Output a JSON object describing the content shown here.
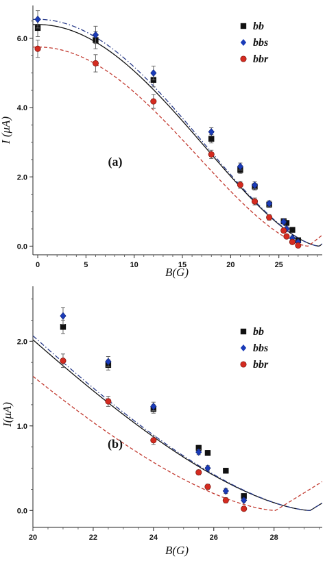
{
  "chart_data": [
    {
      "type": "scatter",
      "panel_label": "(a)",
      "xlabel": "B(G)",
      "ylabel": "I (μA)",
      "xlim": [
        -0.5,
        29.5
      ],
      "ylim": [
        -0.25,
        6.95
      ],
      "xticks": [
        0,
        5,
        10,
        15,
        20,
        25
      ],
      "yticks": [
        0.0,
        2.0,
        4.0,
        6.0
      ],
      "ytick_labels": [
        "0.0",
        "2.0",
        "4.0",
        "6.0"
      ],
      "legend_position": "top-right",
      "series": [
        {
          "name": "bb",
          "marker": "square",
          "color": "#111111",
          "points": [
            [
              0,
              6.3
            ],
            [
              6,
              5.95
            ],
            [
              12,
              4.8
            ],
            [
              18,
              3.1
            ],
            [
              21,
              2.2
            ],
            [
              22.5,
              1.72
            ],
            [
              24,
              1.2
            ],
            [
              25.5,
              0.72
            ],
            [
              25.8,
              0.67
            ],
            [
              26.4,
              0.47
            ],
            [
              27,
              0.17
            ]
          ],
          "errors": [
            0.25,
            0.25,
            0.2,
            0.12,
            0.1,
            0.1,
            0.08,
            0.06,
            0.06,
            0.06,
            0.05
          ]
        },
        {
          "name": "bbs",
          "marker": "diamond",
          "color": "#1a3bb8",
          "points": [
            [
              0,
              6.55
            ],
            [
              6,
              6.1
            ],
            [
              12,
              5.0
            ],
            [
              18,
              3.3
            ],
            [
              21,
              2.3
            ],
            [
              22.5,
              1.76
            ],
            [
              24,
              1.23
            ],
            [
              25.5,
              0.7
            ],
            [
              25.8,
              0.5
            ],
            [
              26.4,
              0.23
            ],
            [
              27,
              0.12
            ]
          ],
          "errors": [
            0.25,
            0.25,
            0.2,
            0.12,
            0.1,
            0.1,
            0.08,
            0.06,
            0.06,
            0.06,
            0.05
          ]
        },
        {
          "name": "bbr",
          "marker": "circle",
          "color": "#d42b20",
          "points": [
            [
              0,
              5.7
            ],
            [
              6,
              5.28
            ],
            [
              12,
              4.18
            ],
            [
              18,
              2.65
            ],
            [
              21,
              1.77
            ],
            [
              22.5,
              1.29
            ],
            [
              24,
              0.83
            ],
            [
              25.5,
              0.45
            ],
            [
              25.8,
              0.28
            ],
            [
              26.4,
              0.12
            ],
            [
              27,
              0.02
            ]
          ],
          "errors": [
            0.25,
            0.25,
            0.2,
            0.12,
            0.1,
            0.1,
            0.08,
            0.06,
            0.06,
            0.06,
            0.05
          ]
        }
      ],
      "fit_curves": [
        {
          "series": "bb",
          "style": "solid",
          "color": "#111111",
          "I0": 6.4,
          "B0": 29.2
        },
        {
          "series": "bbs",
          "style": "dashdot",
          "color": "#2a3c8a",
          "I0": 6.55,
          "B0": 29.2
        },
        {
          "series": "bbr",
          "style": "dashed",
          "color": "#c23a30",
          "I0": 5.75,
          "B0": 28.05
        }
      ]
    },
    {
      "type": "scatter",
      "panel_label": "(b)",
      "xlabel": "B(G)",
      "ylabel": "I(μA)",
      "xlim": [
        20,
        29.6
      ],
      "ylim": [
        -0.2,
        2.65
      ],
      "xticks": [
        20,
        22,
        24,
        26,
        28
      ],
      "yticks": [
        0.0,
        1.0,
        2.0
      ],
      "ytick_labels": [
        "0.0",
        "1.0",
        "2.0"
      ],
      "legend_position": "top-right",
      "series": [
        {
          "name": "bb",
          "marker": "square",
          "color": "#111111",
          "points": [
            [
              21,
              2.17
            ],
            [
              22.5,
              1.72
            ],
            [
              24,
              1.2
            ],
            [
              25.5,
              0.74
            ],
            [
              25.8,
              0.68
            ],
            [
              26.4,
              0.47
            ],
            [
              27,
              0.17
            ]
          ],
          "errors": [
            0.08,
            0.06,
            0.05,
            0.03,
            0.03,
            0.03,
            0.02
          ]
        },
        {
          "name": "bbs",
          "marker": "diamond",
          "color": "#1a3bb8",
          "points": [
            [
              21,
              2.3
            ],
            [
              22.5,
              1.76
            ],
            [
              24,
              1.23
            ],
            [
              25.5,
              0.69
            ],
            [
              25.8,
              0.5
            ],
            [
              26.4,
              0.23
            ],
            [
              27,
              0.12
            ]
          ],
          "errors": [
            0.1,
            0.06,
            0.05,
            0.03,
            0.03,
            0.03,
            0.02
          ]
        },
        {
          "name": "bbr",
          "marker": "circle",
          "color": "#d42b20",
          "points": [
            [
              21,
              1.77
            ],
            [
              22.5,
              1.29
            ],
            [
              24,
              0.83
            ],
            [
              25.5,
              0.45
            ],
            [
              25.8,
              0.28
            ],
            [
              26.4,
              0.12
            ],
            [
              27,
              0.02
            ]
          ],
          "errors": [
            0.08,
            0.06,
            0.05,
            0.03,
            0.03,
            0.03,
            0.02
          ]
        }
      ],
      "fit_curves": [
        {
          "series": "bb",
          "style": "solid",
          "color": "#111111",
          "I0": 6.4,
          "B0": 29.2
        },
        {
          "series": "bbs",
          "style": "dashdot",
          "color": "#2a3c8a",
          "I0": 6.55,
          "B0": 29.2
        },
        {
          "series": "bbr",
          "style": "dashed",
          "color": "#c23a30",
          "I0": 5.75,
          "B0": 28.05
        }
      ]
    }
  ]
}
